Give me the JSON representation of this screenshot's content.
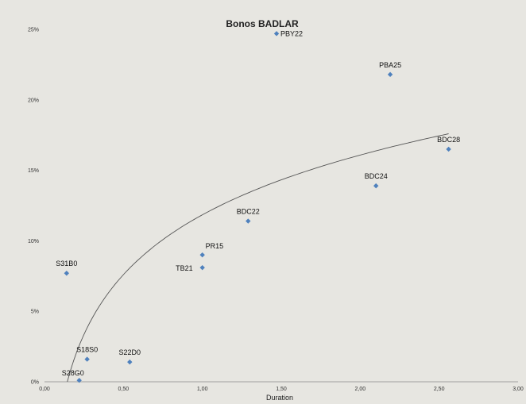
{
  "chart_data": {
    "type": "scatter",
    "title": "Bonos BADLAR",
    "xlabel": "Duration",
    "ylabel": "",
    "xlim": [
      0,
      3
    ],
    "ylim": [
      0,
      25
    ],
    "x_ticks": [
      "0,00",
      "0,50",
      "1,00",
      "1,50",
      "2,00",
      "2,50",
      "3,00"
    ],
    "y_ticks": [
      "0%",
      "5%",
      "10%",
      "15%",
      "20%",
      "25%"
    ],
    "grid": false,
    "legend": "none",
    "marker_color": "#4f81bd",
    "trendline": {
      "type": "logarithmic",
      "color": "#555555"
    },
    "points": [
      {
        "name": "PBY22",
        "x": 1.47,
        "y": 24.7
      },
      {
        "name": "PBA25",
        "x": 2.19,
        "y": 21.8
      },
      {
        "name": "BDC28",
        "x": 2.56,
        "y": 16.5
      },
      {
        "name": "BDC24",
        "x": 2.1,
        "y": 13.9
      },
      {
        "name": "BDC22",
        "x": 1.29,
        "y": 11.4
      },
      {
        "name": "PR15",
        "x": 1.0,
        "y": 9.0
      },
      {
        "name": "TB21",
        "x": 1.0,
        "y": 8.1
      },
      {
        "name": "S31B0",
        "x": 0.14,
        "y": 7.7
      },
      {
        "name": "S18S0",
        "x": 0.27,
        "y": 1.6
      },
      {
        "name": "S22D0",
        "x": 0.54,
        "y": 1.4
      },
      {
        "name": "S28G0",
        "x": 0.22,
        "y": 0.1
      }
    ]
  }
}
